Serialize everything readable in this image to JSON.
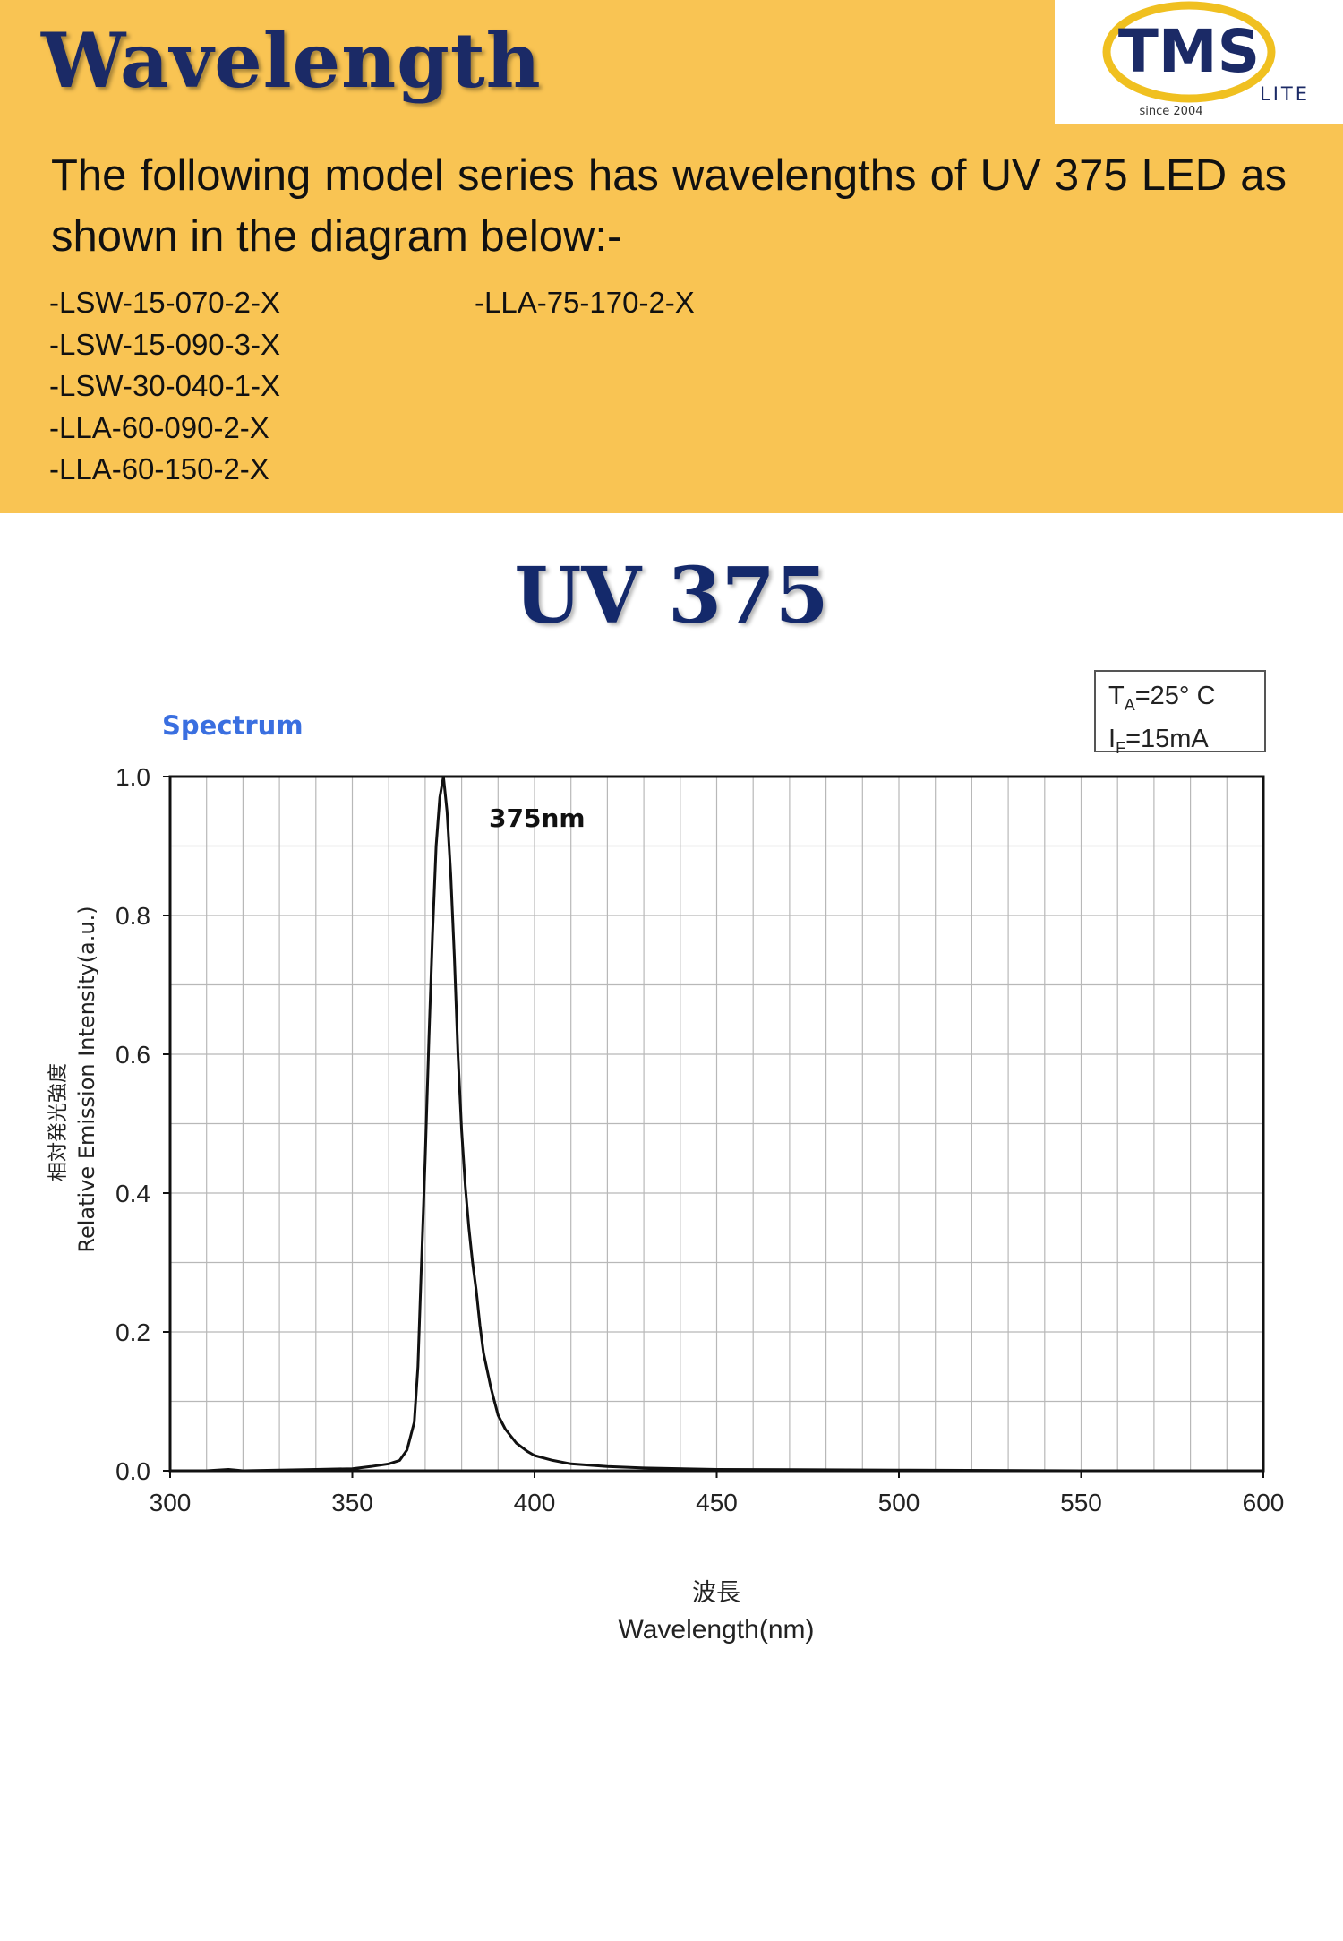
{
  "header": {
    "title": "Wavelength",
    "intro": "The following model series has wavelengths of UV 375 LED as shown in the diagram below:-",
    "models_left": [
      "-LSW-15-070-2-X",
      "-LSW-15-090-3-X",
      "-LSW-30-040-1-X",
      "-LLA-60-090-2-X",
      "-LLA-60-150-2-X"
    ],
    "models_right": [
      "-LLA-75-170-2-X"
    ],
    "colors": {
      "band": "#f9c453",
      "title": "#1b2a66"
    }
  },
  "logo": {
    "brand": "TMS",
    "sub": "LITE",
    "since": "since 2004",
    "colors": {
      "ring": "#f0c020",
      "text": "#1b2a66"
    }
  },
  "chart_heading": "UV 375",
  "chart_data": {
    "type": "line",
    "title": "Spectrum",
    "conditions": {
      "ta_sym": "T",
      "ta_sub": "A",
      "ta_val": "=25° C",
      "if_sym": "I",
      "if_sub": "F",
      "if_val": "=15mA"
    },
    "peak_annotation": "375nm",
    "xlabel_jp": "波長",
    "xlabel": "Wavelength(nm)",
    "ylabel_jp": "相対発光強度",
    "ylabel": "Relative Emission Intensity(a.u.)",
    "xlim": [
      300,
      600
    ],
    "ylim": [
      0,
      1.0
    ],
    "xticks": [
      300,
      350,
      400,
      450,
      500,
      550,
      600
    ],
    "yticks": [
      "0.0",
      "0.2",
      "0.4",
      "0.6",
      "0.8",
      "1.0"
    ],
    "grid": true,
    "series": [
      {
        "x": [
          300,
          310,
          316,
          320,
          330,
          340,
          350,
          355,
          360,
          363,
          365,
          367,
          368,
          369,
          370,
          371,
          372,
          373,
          374,
          375,
          376,
          377,
          378,
          379,
          380,
          381,
          382,
          383,
          384,
          385,
          386,
          388,
          390,
          392,
          395,
          398,
          400,
          405,
          410,
          420,
          430,
          450,
          500,
          550,
          600
        ],
        "y": [
          0.0,
          0.0,
          0.002,
          0.0,
          0.001,
          0.002,
          0.003,
          0.006,
          0.01,
          0.015,
          0.03,
          0.07,
          0.15,
          0.3,
          0.45,
          0.62,
          0.77,
          0.9,
          0.97,
          1.0,
          0.95,
          0.86,
          0.74,
          0.6,
          0.49,
          0.41,
          0.35,
          0.3,
          0.26,
          0.21,
          0.17,
          0.12,
          0.08,
          0.06,
          0.04,
          0.028,
          0.022,
          0.015,
          0.01,
          0.006,
          0.004,
          0.002,
          0.001,
          0.0,
          0.0
        ],
        "color": "#111111"
      }
    ]
  }
}
